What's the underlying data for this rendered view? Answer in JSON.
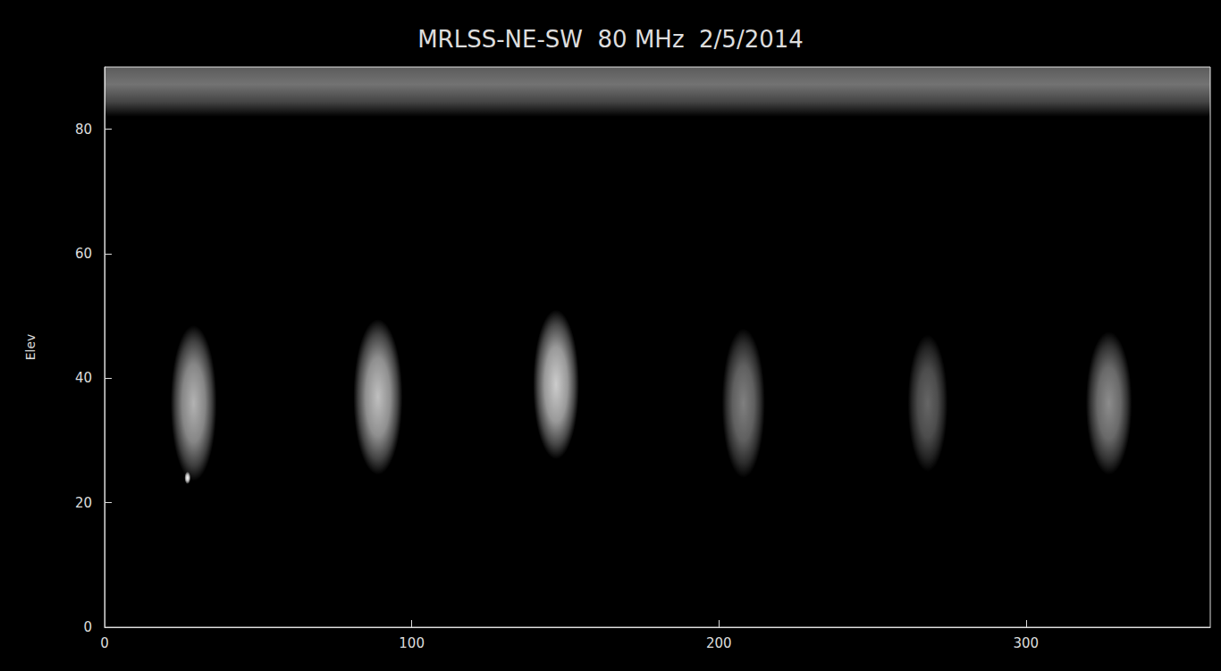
{
  "chart_data": {
    "type": "sky_map",
    "title": "MRLSS-NE-SW  80 MHz  2/5/2014",
    "y_label": "Elev",
    "xlim": [
      0,
      360
    ],
    "xticks": [
      0,
      100,
      200,
      300
    ],
    "ylim": [
      0,
      90
    ],
    "yticks": [
      0,
      20,
      40,
      60,
      80
    ],
    "grid": false,
    "color": "#ffffff",
    "band": {
      "from": 82,
      "to": 90,
      "intensity": 0.45
    },
    "sources": [
      {
        "x": 29,
        "y": 36,
        "width": 15,
        "height": 25,
        "intensity": 0.7
      },
      {
        "x": 89,
        "y": 37,
        "width": 16,
        "height": 25,
        "intensity": 0.75
      },
      {
        "x": 147,
        "y": 39,
        "width": 15,
        "height": 24,
        "intensity": 0.8
      },
      {
        "x": 208,
        "y": 36,
        "width": 14,
        "height": 24,
        "intensity": 0.5
      },
      {
        "x": 268,
        "y": 36,
        "width": 13,
        "height": 22,
        "intensity": 0.4
      },
      {
        "x": 327,
        "y": 36,
        "width": 15,
        "height": 23,
        "intensity": 0.55
      },
      {
        "x": 27,
        "y": 24,
        "width": 2,
        "height": 2,
        "intensity": 1
      }
    ]
  }
}
